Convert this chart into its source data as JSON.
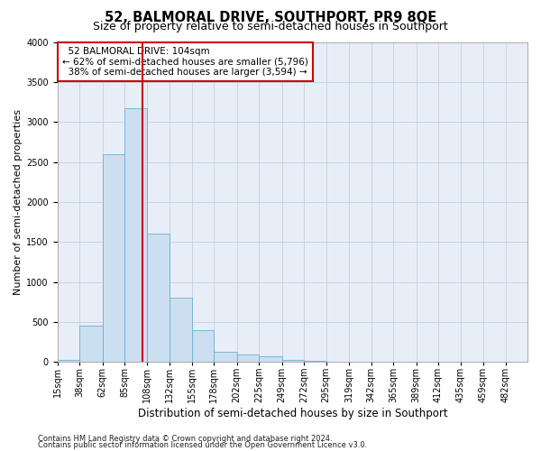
{
  "title": "52, BALMORAL DRIVE, SOUTHPORT, PR9 8QE",
  "subtitle": "Size of property relative to semi-detached houses in Southport",
  "xlabel": "Distribution of semi-detached houses by size in Southport",
  "ylabel": "Number of semi-detached properties",
  "footnote1": "Contains HM Land Registry data © Crown copyright and database right 2024.",
  "footnote2": "Contains public sector information licensed under the Open Government Licence v3.0.",
  "property_label": "52 BALMORAL DRIVE: 104sqm",
  "pct_smaller": 62,
  "count_smaller": 5796,
  "pct_larger": 38,
  "count_larger": 3594,
  "bin_labels": [
    "15sqm",
    "38sqm",
    "62sqm",
    "85sqm",
    "108sqm",
    "132sqm",
    "155sqm",
    "178sqm",
    "202sqm",
    "225sqm",
    "249sqm",
    "272sqm",
    "295sqm",
    "319sqm",
    "342sqm",
    "365sqm",
    "389sqm",
    "412sqm",
    "435sqm",
    "459sqm",
    "482sqm"
  ],
  "bin_edges": [
    15,
    38,
    62,
    85,
    108,
    132,
    155,
    178,
    202,
    225,
    249,
    272,
    295,
    319,
    342,
    365,
    389,
    412,
    435,
    459,
    482,
    505
  ],
  "bar_heights": [
    25,
    450,
    2600,
    3175,
    1600,
    800,
    400,
    130,
    90,
    75,
    25,
    15,
    10,
    5,
    5,
    5,
    0,
    0,
    5,
    0,
    0
  ],
  "bar_color": "#ccdff0",
  "bar_edge_color": "#6aaed6",
  "vline_color": "#cc0000",
  "vline_x": 104,
  "box_color": "#cc0000",
  "ylim": [
    0,
    4000
  ],
  "yticks": [
    0,
    500,
    1000,
    1500,
    2000,
    2500,
    3000,
    3500,
    4000
  ],
  "grid_color": "#c8d4e4",
  "bg_color": "#e8eef8",
  "title_fontsize": 10.5,
  "subtitle_fontsize": 9,
  "axis_label_fontsize": 8,
  "tick_fontsize": 7,
  "annot_fontsize": 7.5,
  "footnote_fontsize": 6
}
